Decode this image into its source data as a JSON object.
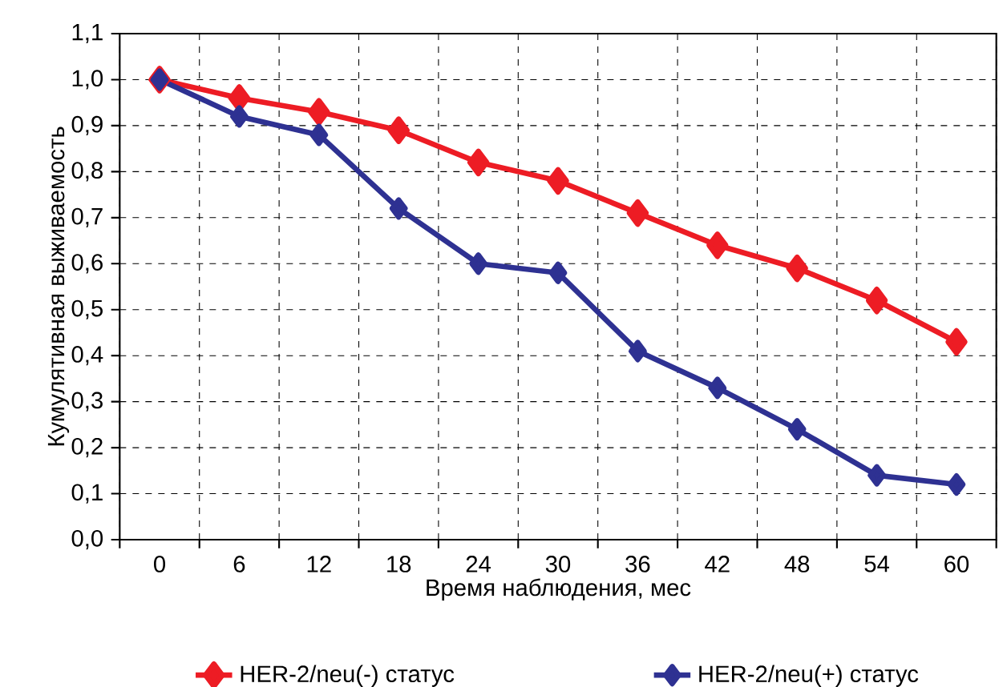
{
  "chart_data": {
    "type": "line",
    "xlabel": "Время наблюдения, мес",
    "ylabel": "Кумулятивная выживаемость",
    "categories": [
      "0",
      "6",
      "12",
      "18",
      "24",
      "30",
      "36",
      "42",
      "48",
      "54",
      "60"
    ],
    "series": [
      {
        "name": "HER-2/neu(-) статус",
        "color": "#ed1c24",
        "values": [
          1.0,
          0.96,
          0.93,
          0.89,
          0.82,
          0.78,
          0.71,
          0.64,
          0.59,
          0.52,
          0.43
        ]
      },
      {
        "name": "HER-2/neu(+) статус",
        "color": "#2e3192",
        "values": [
          1.0,
          0.92,
          0.88,
          0.72,
          0.6,
          0.58,
          0.41,
          0.33,
          0.24,
          0.14,
          0.12
        ]
      }
    ],
    "ylim": [
      0,
      1.1
    ],
    "yticks": [
      {
        "value": 0,
        "label": "0,0"
      },
      {
        "value": 0.1,
        "label": "0,1"
      },
      {
        "value": 0.2,
        "label": "0,2"
      },
      {
        "value": 0.3,
        "label": "0,3"
      },
      {
        "value": 0.4,
        "label": "0,4"
      },
      {
        "value": 0.5,
        "label": "0,5"
      },
      {
        "value": 0.6,
        "label": "0,6"
      },
      {
        "value": 0.7,
        "label": "0,7"
      },
      {
        "value": 0.8,
        "label": "0,8"
      },
      {
        "value": 0.9,
        "label": "0,9"
      },
      {
        "value": 1.0,
        "label": "1,0"
      },
      {
        "value": 1.1,
        "label": "1,1"
      }
    ],
    "grid": true,
    "legend": "bottom",
    "marker": "diamond",
    "line_style": "solid"
  }
}
